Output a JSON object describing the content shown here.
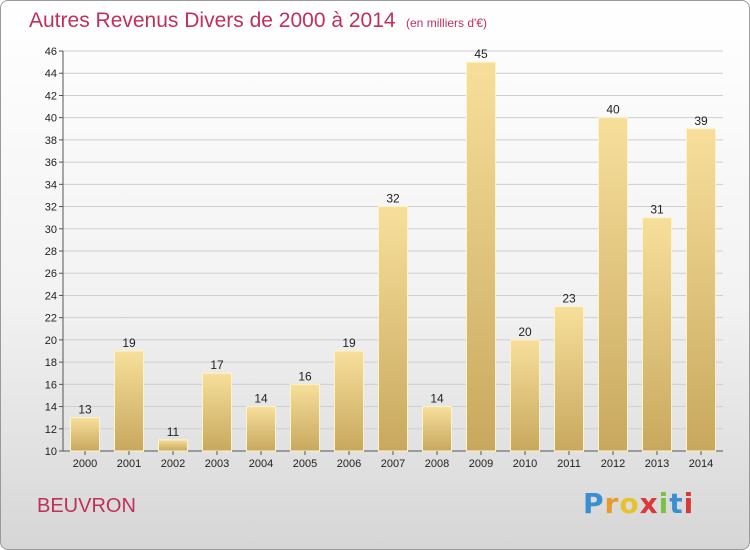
{
  "chart_data": {
    "type": "bar",
    "title": "Autres Revenus Divers de 2000 à 2014",
    "unit_note": "(en milliers d'€)",
    "categories": [
      "2000",
      "2001",
      "2002",
      "2003",
      "2004",
      "2005",
      "2006",
      "2007",
      "2008",
      "2009",
      "2010",
      "2011",
      "2012",
      "2013",
      "2014"
    ],
    "values": [
      13,
      19,
      11,
      17,
      14,
      16,
      19,
      32,
      14,
      45,
      20,
      23,
      40,
      31,
      39
    ],
    "ylim": [
      10,
      46
    ],
    "yticks": [
      10,
      12,
      14,
      16,
      18,
      20,
      22,
      24,
      26,
      28,
      30,
      32,
      34,
      36,
      38,
      40,
      42,
      44,
      46
    ],
    "grid": true,
    "bar_color_light": "#f7df9b",
    "bar_color_dark": "#c8a85e",
    "title_color": "#c0305a"
  },
  "place_name": "BEUVRON",
  "logo": {
    "letters": [
      "P",
      "r",
      "o",
      "x",
      "i",
      "t",
      "i"
    ],
    "colors": [
      "#3a8fd0",
      "#e89a2a",
      "#e8c22a",
      "#d83a3a",
      "#7cc242",
      "#3a8fd0",
      "#d83a3a"
    ]
  }
}
